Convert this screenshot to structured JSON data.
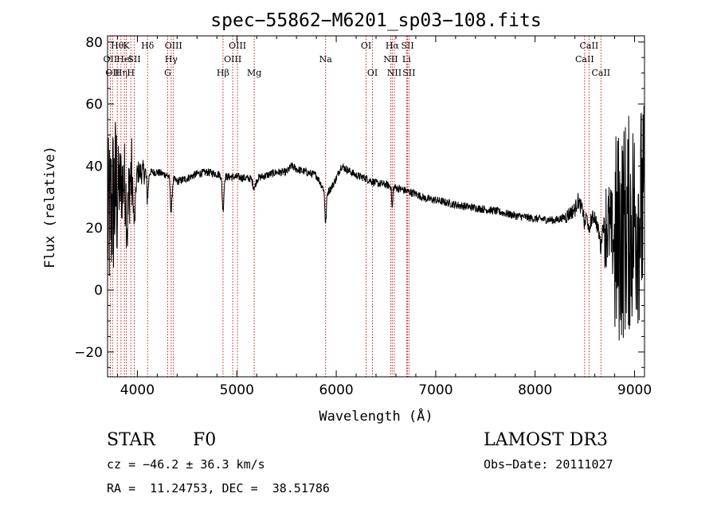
{
  "chart_data": {
    "type": "line",
    "title": "spec−55862−M6201_sp03−108.fits",
    "xlabel": "Wavelength (Å)",
    "ylabel": "Flux (relative)",
    "xlim": [
      3700,
      9100
    ],
    "ylim": [
      -28,
      82
    ],
    "xticks": [
      4000,
      5000,
      6000,
      7000,
      8000,
      9000
    ],
    "xtick_labels": [
      "4000",
      "5000",
      "6000",
      "7000",
      "8000",
      "9000"
    ],
    "yticks": [
      -20,
      0,
      20,
      40,
      60,
      80
    ],
    "ytick_labels": [
      "−20",
      "0",
      "20",
      "40",
      "60",
      "80"
    ],
    "line_color": "#000000",
    "marker_color": "#cc0000",
    "continuum": [
      [
        3700,
        20
      ],
      [
        3750,
        28
      ],
      [
        3800,
        33
      ],
      [
        3900,
        36
      ],
      [
        4000,
        38
      ],
      [
        4100,
        38
      ],
      [
        4200,
        38
      ],
      [
        4300,
        37
      ],
      [
        4400,
        35
      ],
      [
        4500,
        36
      ],
      [
        4600,
        37.5
      ],
      [
        4700,
        38
      ],
      [
        4800,
        37.5
      ],
      [
        4900,
        36.5
      ],
      [
        5000,
        36.5
      ],
      [
        5100,
        36
      ],
      [
        5200,
        36
      ],
      [
        5300,
        37
      ],
      [
        5400,
        38
      ],
      [
        5500,
        38
      ],
      [
        5550,
        40
      ],
      [
        5600,
        39
      ],
      [
        5700,
        38
      ],
      [
        5800,
        37
      ],
      [
        5850,
        34
      ],
      [
        5900,
        31
      ],
      [
        5950,
        33
      ],
      [
        6000,
        36
      ],
      [
        6050,
        40
      ],
      [
        6100,
        39
      ],
      [
        6200,
        37
      ],
      [
        6300,
        36
      ],
      [
        6400,
        34.5
      ],
      [
        6500,
        34
      ],
      [
        6600,
        33
      ],
      [
        6700,
        32
      ],
      [
        6800,
        31
      ],
      [
        6900,
        29.5
      ],
      [
        7000,
        29
      ],
      [
        7200,
        27.5
      ],
      [
        7400,
        26.5
      ],
      [
        7600,
        25.5
      ],
      [
        7800,
        24
      ],
      [
        8000,
        23
      ],
      [
        8200,
        22.5
      ],
      [
        8300,
        23.5
      ],
      [
        8400,
        26
      ],
      [
        8430,
        29
      ],
      [
        8500,
        24
      ],
      [
        8550,
        22
      ],
      [
        8600,
        24
      ],
      [
        8650,
        17
      ],
      [
        8700,
        22
      ],
      [
        8750,
        20
      ],
      [
        8800,
        15
      ],
      [
        8900,
        20
      ],
      [
        9000,
        23
      ],
      [
        9050,
        25
      ]
    ],
    "features": [
      {
        "x": 3900,
        "depth": 14,
        "w": 15
      },
      {
        "x": 3970,
        "depth": 16,
        "w": 15
      },
      {
        "x": 4102,
        "depth": 8,
        "w": 12
      },
      {
        "x": 4340,
        "depth": 11,
        "w": 12
      },
      {
        "x": 4861,
        "depth": 11,
        "w": 12
      },
      {
        "x": 5175,
        "depth": 3,
        "w": 20
      },
      {
        "x": 5893,
        "depth": 10,
        "w": 10
      },
      {
        "x": 6563,
        "depth": 7,
        "w": 8
      },
      {
        "x": 8498,
        "depth": 4,
        "w": 8
      },
      {
        "x": 8542,
        "depth": 5,
        "w": 8
      },
      {
        "x": 8662,
        "depth": 5,
        "w": 8
      }
    ],
    "noise_bands": [
      {
        "x0": 3700,
        "x1": 3800,
        "amp": 28
      },
      {
        "x0": 3800,
        "x1": 3950,
        "amp": 14
      },
      {
        "x0": 3950,
        "x1": 4100,
        "amp": 4
      },
      {
        "x0": 4100,
        "x1": 8300,
        "amp": 1.3
      },
      {
        "x0": 8300,
        "x1": 8700,
        "amp": 2.5
      },
      {
        "x0": 8700,
        "x1": 8800,
        "amp": 15
      },
      {
        "x0": 8800,
        "x1": 9100,
        "amp": 36
      }
    ],
    "spectral_lines": [
      {
        "x": 3727,
        "row": 1,
        "label": "OII"
      },
      {
        "x": 3750,
        "row": 2,
        "label": "OII"
      },
      {
        "x": 3798,
        "row": 0,
        "label": "Hθ"
      },
      {
        "x": 3835,
        "row": 2,
        "label": "Hη"
      },
      {
        "x": 3869,
        "row": 1,
        "label": "Hel"
      },
      {
        "x": 3889,
        "row": 0,
        "label": "K"
      },
      {
        "x": 3934,
        "row": 2,
        "label": "H"
      },
      {
        "x": 3969,
        "row": 1,
        "label": "SII"
      },
      {
        "x": 4102,
        "row": 0,
        "label": "Hδ"
      },
      {
        "x": 4305,
        "row": 2,
        "label": "G"
      },
      {
        "x": 4340,
        "row": 1,
        "label": "Hγ"
      },
      {
        "x": 4363,
        "row": 0,
        "label": "OIII"
      },
      {
        "x": 4861,
        "row": 2,
        "label": "Hβ"
      },
      {
        "x": 4959,
        "row": 1,
        "label": "OIII"
      },
      {
        "x": 5007,
        "row": 0,
        "label": "OIII"
      },
      {
        "x": 5175,
        "row": 2,
        "label": "Mg"
      },
      {
        "x": 5893,
        "row": 1,
        "label": "Na"
      },
      {
        "x": 6300,
        "row": 0,
        "label": "OI"
      },
      {
        "x": 6364,
        "row": 2,
        "label": "OI"
      },
      {
        "x": 6548,
        "row": 1,
        "label": "NII"
      },
      {
        "x": 6563,
        "row": 0,
        "label": "Hα"
      },
      {
        "x": 6584,
        "row": 2,
        "label": "NII"
      },
      {
        "x": 6707,
        "row": 1,
        "label": "Li"
      },
      {
        "x": 6717,
        "row": 0,
        "label": "SII"
      },
      {
        "x": 6731,
        "row": 2,
        "label": "SII"
      },
      {
        "x": 8498,
        "row": 1,
        "label": "CaII"
      },
      {
        "x": 8542,
        "row": 0,
        "label": "CaII"
      },
      {
        "x": 8662,
        "row": 2,
        "label": "CaII"
      }
    ]
  },
  "info": {
    "class_label": "STAR",
    "subclass": "F0",
    "survey": "LAMOST DR3",
    "cz": "cz = −46.2 ± 36.3 km/s",
    "obs_date": "Obs−Date: 20111027",
    "radec": "RA =  11.24753, DEC =  38.51786"
  }
}
